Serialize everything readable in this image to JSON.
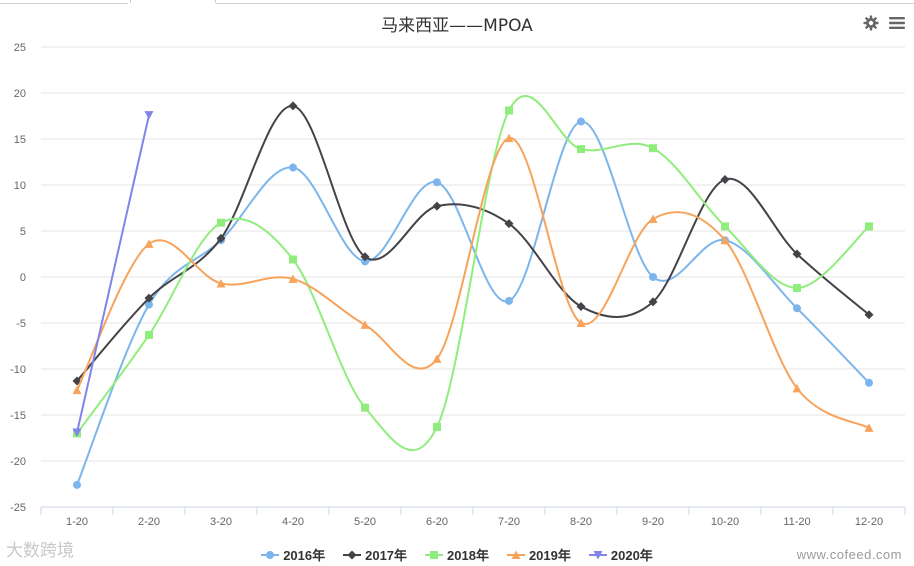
{
  "title": "马来西亚——MPOA",
  "toolbar": {
    "settings_icon": "gear-icon",
    "menu_icon": "menu-icon"
  },
  "watermark": {
    "left": "大数跨境",
    "right": "www.cofeed.com"
  },
  "chart_data": {
    "type": "line",
    "title": "马来西亚——MPOA",
    "categories": [
      "1-20",
      "2-20",
      "3-20",
      "4-20",
      "5-20",
      "6-20",
      "7-20",
      "8-20",
      "9-20",
      "10-20",
      "11-20",
      "12-20"
    ],
    "ylim": [
      -25,
      25
    ],
    "yticks": [
      -25,
      -20,
      -15,
      -10,
      -5,
      0,
      5,
      10,
      15,
      20,
      25
    ],
    "grid": true,
    "legend_position": "bottom",
    "series": [
      {
        "name": "2016年",
        "color": "#7cb5ec",
        "marker": "circle",
        "values": [
          -22.6,
          -3.0,
          4.0,
          11.9,
          1.7,
          10.3,
          -2.6,
          16.9,
          0.0,
          4.0,
          -3.4,
          -11.5
        ]
      },
      {
        "name": "2017年",
        "color": "#434348",
        "marker": "diamond",
        "values": [
          -11.3,
          -2.3,
          4.2,
          18.6,
          2.2,
          7.7,
          5.8,
          -3.2,
          -2.7,
          10.6,
          2.5,
          -4.1
        ]
      },
      {
        "name": "2018年",
        "color": "#90ed7d",
        "marker": "square",
        "values": [
          -17.0,
          -6.3,
          5.9,
          1.9,
          -14.2,
          -16.3,
          18.1,
          13.9,
          14.0,
          5.5,
          -1.2,
          5.5
        ]
      },
      {
        "name": "2019年",
        "color": "#f7a35c",
        "marker": "triangle",
        "values": [
          -12.3,
          3.6,
          -0.7,
          -0.2,
          -5.2,
          -8.9,
          15.1,
          -5.0,
          6.3,
          4.0,
          -12.1,
          -16.4
        ]
      },
      {
        "name": "2020年",
        "color": "#8085e9",
        "marker": "triangle-down",
        "values": [
          -16.9,
          17.6,
          null,
          null,
          null,
          null,
          null,
          null,
          null,
          null,
          null,
          null
        ]
      }
    ]
  }
}
